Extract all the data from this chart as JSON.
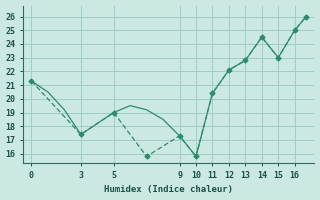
{
  "line1_x": [
    0,
    1,
    2,
    3,
    4,
    5,
    6,
    7,
    8,
    9,
    10,
    11,
    12,
    13,
    14,
    15,
    16,
    16.7
  ],
  "line1_y": [
    21.3,
    20.5,
    19.2,
    17.4,
    18.2,
    19.0,
    19.5,
    19.2,
    18.5,
    17.3,
    15.8,
    20.4,
    22.1,
    22.8,
    24.5,
    23.0,
    25.0,
    26.0
  ],
  "line2_x": [
    0,
    3,
    5,
    7,
    9,
    10,
    11,
    12,
    13,
    14,
    15,
    16,
    16.7
  ],
  "line2_y": [
    21.3,
    17.4,
    19.0,
    15.8,
    17.3,
    15.8,
    20.4,
    22.1,
    22.8,
    24.5,
    23.0,
    25.0,
    26.0
  ],
  "marker2_x": [
    3,
    5,
    7,
    9,
    10,
    11,
    12,
    13,
    14,
    15,
    16,
    16.7
  ],
  "marker2_y": [
    17.4,
    19.0,
    15.8,
    17.3,
    15.8,
    20.4,
    22.1,
    22.8,
    24.5,
    23.0,
    25.0,
    26.0
  ],
  "color": "#2e8b6e",
  "bg_color": "#cce8e2",
  "grid_color": "#9dcec6",
  "xlabel": "Humidex (Indice chaleur)",
  "xticks": [
    0,
    3,
    5,
    9,
    10,
    11,
    12,
    13,
    14,
    15,
    16
  ],
  "yticks": [
    16,
    17,
    18,
    19,
    20,
    21,
    22,
    23,
    24,
    25,
    26
  ],
  "ylim": [
    15.3,
    26.8
  ],
  "xlim": [
    -0.5,
    17.2
  ]
}
